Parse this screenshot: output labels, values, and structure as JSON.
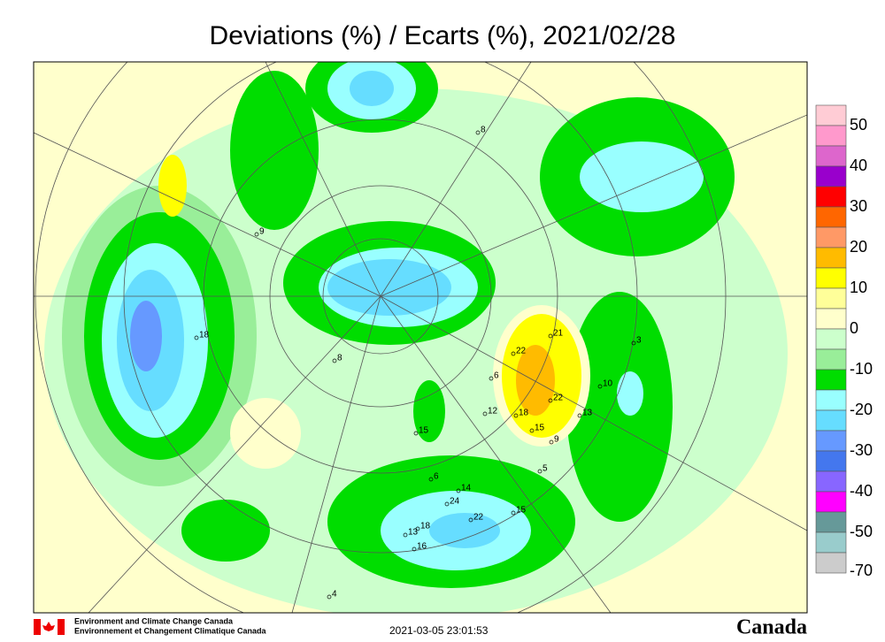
{
  "header": {
    "title": "Deviations (%) / Ecarts (%), 2021/02/28"
  },
  "legend": {
    "labels": [
      "50",
      "40",
      "30",
      "20",
      "10",
      "0",
      "-10",
      "-20",
      "-30",
      "-40",
      "-50",
      "-70"
    ],
    "colors": [
      "#ffccd5",
      "#ff99cc",
      "#dd66cc",
      "#9900cc",
      "#ff0000",
      "#ff6600",
      "#ff9966",
      "#ffbb00",
      "#ffff00",
      "#ffff99",
      "#ffffcc",
      "#ccffcc",
      "#99ee99",
      "#00dd00",
      "#99ffff",
      "#66ddff",
      "#6699ff",
      "#4477ee",
      "#8866ff",
      "#ff00ff",
      "#669999",
      "#99cccc",
      "#cccccc"
    ]
  },
  "stations": [
    "8",
    "18",
    "9",
    "6",
    "8",
    "12",
    "22",
    "21",
    "22",
    "18",
    "15",
    "9",
    "13",
    "10",
    "3",
    "15",
    "13",
    "18",
    "16",
    "24",
    "22",
    "14",
    "15",
    "6",
    "5",
    "4"
  ],
  "footer": {
    "agency_en": "Environment and Climate Change Canada",
    "agency_fr": "Environnement et Changement Climatique Canada",
    "timestamp": "2021-03-05 23:01:53",
    "wordmark": "Canada"
  }
}
